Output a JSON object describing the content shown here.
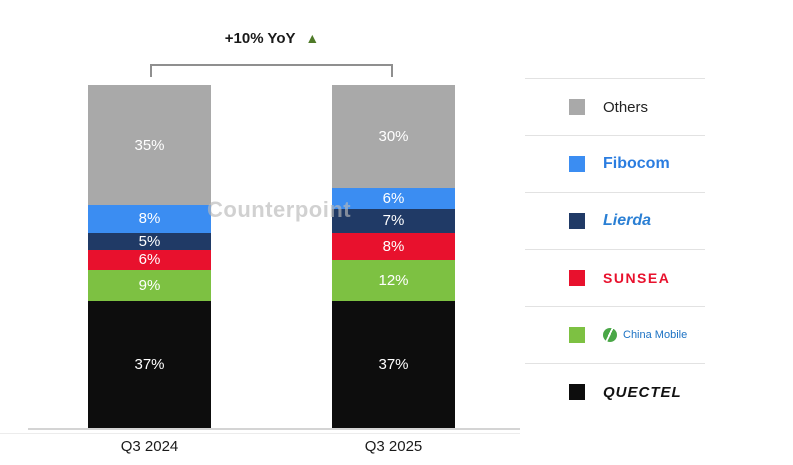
{
  "watermark": {
    "text": "Counterpoint"
  },
  "annotation": {
    "text": "+10% YoY",
    "arrow": "▲",
    "arrow_color": "#4f7a28"
  },
  "chart_data": {
    "type": "bar",
    "stacked": true,
    "value_suffix": "%",
    "categories": [
      "Q3 2024",
      "Q3 2025"
    ],
    "series": [
      {
        "name": "Quectel",
        "color": "#0d0d0d",
        "values": [
          37,
          37
        ]
      },
      {
        "name": "China Mobile",
        "color": "#7dc142",
        "values": [
          9,
          12
        ]
      },
      {
        "name": "Sunsea",
        "color": "#e8112d",
        "values": [
          6,
          8
        ]
      },
      {
        "name": "Lierda",
        "color": "#203a66",
        "values": [
          5,
          7
        ]
      },
      {
        "name": "Fibocom",
        "color": "#3b8df2",
        "values": [
          8,
          6
        ]
      },
      {
        "name": "Others",
        "color": "#a9a9a9",
        "values": [
          35,
          30
        ]
      }
    ],
    "ylim": [
      0,
      100
    ],
    "grid": false,
    "legend_position": "right"
  },
  "legend": {
    "items": [
      {
        "label": "Others",
        "color": "#a9a9a9",
        "text_color": "#222222"
      },
      {
        "label": "Fibocom",
        "color": "#3b8df2",
        "text_color": "#2b7de0"
      },
      {
        "label": "Lierda",
        "color": "#203a66",
        "text_color": "#2a7fd4"
      },
      {
        "label": "SUNSEA",
        "color": "#e8112d",
        "text_color": "#e8112d"
      },
      {
        "label": "China Mobile",
        "color": "#7dc142",
        "text_color": "#1c72c4"
      },
      {
        "label": "QUECTEL",
        "color": "#0d0d0d",
        "text_color": "#111111"
      }
    ]
  }
}
